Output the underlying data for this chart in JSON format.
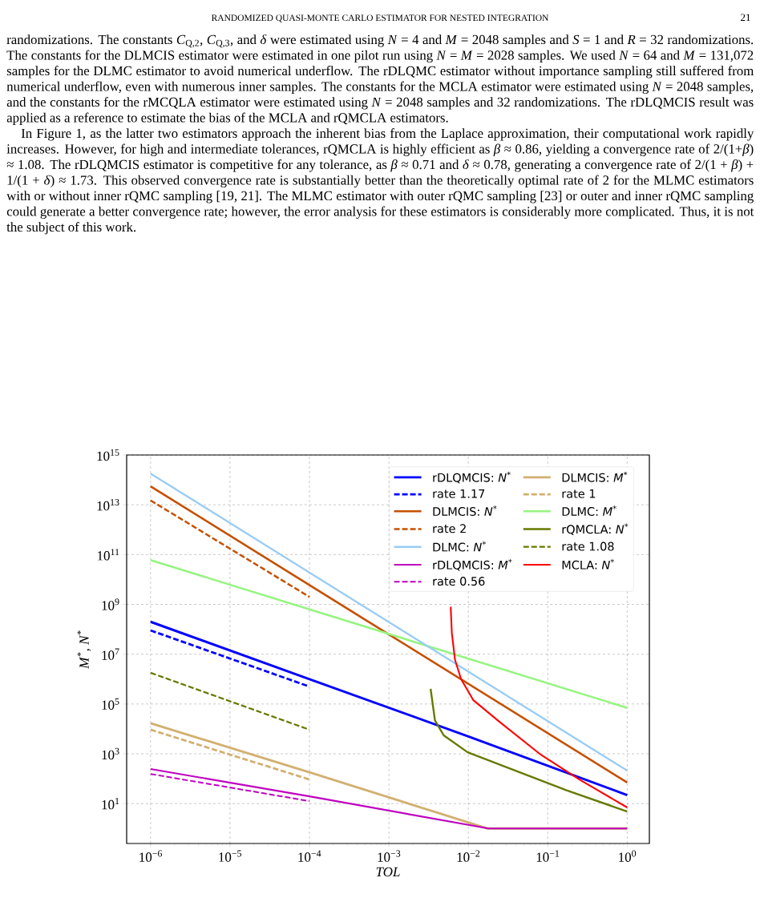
{
  "chart_data": {
    "type": "line",
    "xlabel": "*TOL*",
    "ylabel": "*M*$^{*}$, *N*$^{*}$",
    "annotations": [
      "RANDOMIZED QUASI-MONTE CARLO ESTIMATOR FOR NESTED INTEGRATION",
      "21",
      "randomizations. The constants *C*$_{Q,2}$, *C*$_{Q,3}$, and *δ* were estimated using *N* = 4 and *M* = 2048 samples and *S* = 1 and *R* = 32 randomizations. The constants for the DLMCIS estimator were estimated in one pilot run using *N* = *M* = 2028 samples. We used *N* = 64 and *M* = 131,072 samples for the DLMC estimator to avoid numerical underflow. The rDLQMC estimator without importance sampling still suffered from numerical underflow, even with numerous inner samples. The constants for the MCLA estimator were estimated using *N* = 2048 samples, and the constants for the rMCQLA estimator were estimated using *N* = 2048 samples and 32 randomizations. The rDLQMCIS result was applied as a reference to estimate the bias of the MCLA and rQMCLA estimators.",
      "In Figure 1, as the latter two estimators approach the inherent bias from the Laplace approximation, their computational work rapidly increases. However, for high and intermediate tolerances, rQMCLA is highly efficient as *β* ≈ 0.86, yielding a convergence rate of 2/(1+*β*) ≈ 1.08. The rDLQMCIS estimator is competitive for any tolerance, as *β* ≈ 0.71 and *δ* ≈ 0.78, generating a convergence rate of 2/(1 + *β*) + 1/(1 + *δ*) ≈ 1.73. This observed convergence rate is substantially better than the theoretically optimal rate of 2 for the MLMC estimators with or without inner rQMC sampling [19, 21]. The MLMC estimator with outer rQMC sampling [23] or outer and inner rQMC sampling could generate a better convergence rate; however, the error analysis for these estimators is considerably more complicated. Thus, it is not the subject of this work."
    ],
    "log": "xy",
    "xlim": [
      5e-07,
      1.9
    ],
    "ylim": [
      0.25,
      1000000000000000.0
    ],
    "xticks": [
      {
        "value": 1e-06,
        "label": "10$^{−6}$"
      },
      {
        "value": 1e-05,
        "label": "10$^{−5}$"
      },
      {
        "value": 0.0001,
        "label": "10$^{−4}$"
      },
      {
        "value": 0.001,
        "label": "10$^{−3}$"
      },
      {
        "value": 0.01,
        "label": "10$^{−2}$"
      },
      {
        "value": 0.1,
        "label": "10$^{−1}$"
      },
      {
        "value": 1,
        "label": "10$^{0}$"
      }
    ],
    "yticks": [
      {
        "value": 10,
        "label": "10$^{1}$"
      },
      {
        "value": 1000.0,
        "label": "10$^{3}$"
      },
      {
        "value": 100000.0,
        "label": "10$^{5}$"
      },
      {
        "value": 10000000.0,
        "label": "10$^{7}$"
      },
      {
        "value": 1000000000.0,
        "label": "10$^{9}$"
      },
      {
        "value": 100000000000.0,
        "label": "10$^{11}$"
      },
      {
        "value": 10000000000000.0,
        "label": "10$^{13}$"
      },
      {
        "value": 1000000000000000.0,
        "label": "10$^{15}$"
      }
    ],
    "grid": true,
    "legend": "top right",
    "series": [
      {
        "name": "rDLQMCIS: *N*$^{*}$",
        "color": "#0000ff",
        "line_style": "solid",
        "x": [
          1e-06,
          0.0001,
          0.01,
          1
        ],
        "values": [
          200000000.0,
          1000000.0,
          5000.0,
          22
        ]
      },
      {
        "name": "rate 1.17",
        "color": "#0000ff",
        "line_style": "dashed",
        "x": [
          1e-06,
          0.0001
        ],
        "values": [
          90000000.0,
          500000.0
        ]
      },
      {
        "name": "DLMCIS: *N*$^{*}$",
        "color": "#c55000",
        "line_style": "solid",
        "x": [
          1e-06,
          1
        ],
        "values": [
          55000000000000.0,
          70
        ]
      },
      {
        "name": "rate 2",
        "color": "#c55000",
        "line_style": "dashed",
        "x": [
          1e-06,
          0.0001
        ],
        "values": [
          15000000000000.0,
          2000000000.0
        ]
      },
      {
        "name": "DLMC: *N*$^{*}$",
        "color": "#99ccf5",
        "line_style": "solid",
        "x": [
          1e-06,
          1
        ],
        "values": [
          180000000000000.0,
          210
        ]
      },
      {
        "name": "rDLQMCIS: *M*$^{*}$",
        "color": "#bf00bf",
        "line_style": "solid",
        "x": [
          1e-06,
          0.0001,
          0.018,
          1
        ],
        "values": [
          245,
          19.5,
          1,
          1
        ]
      },
      {
        "name": "rate 0.56",
        "color": "#bf00bf",
        "line_style": "dashed",
        "x": [
          1e-06,
          0.0001
        ],
        "values": [
          155,
          12.6
        ]
      },
      {
        "name": "DLMCIS: *M*$^{*}$",
        "color": "#d2b070",
        "line_style": "solid",
        "x": [
          1e-06,
          0.0001,
          0.0175,
          1
        ],
        "values": [
          17000.0,
          180,
          1,
          1
        ]
      },
      {
        "name": "rate 1",
        "color": "#d2b070",
        "line_style": "dashed",
        "x": [
          1e-06,
          0.0001
        ],
        "values": [
          9300.0,
          93
        ]
      },
      {
        "name": "DLMC: *M*$^{*}$",
        "color": "#95f57f",
        "line_style": "solid",
        "x": [
          1e-06,
          1
        ],
        "values": [
          60000000000.0,
          70000.0
        ]
      },
      {
        "name": "rQMCLA: *N*$^{*}$",
        "color": "#667a00",
        "line_style": "solid",
        "x": [
          0.00335,
          0.0038,
          0.0049,
          0.0098,
          0.037,
          0.17,
          1
        ],
        "values": [
          410000.0,
          22000.0,
          5500.0,
          1150,
          224,
          35,
          4.8
        ]
      },
      {
        "name": "rate 1.08",
        "color": "#667a00",
        "line_style": "dashed",
        "x": [
          1e-06,
          0.0001
        ],
        "values": [
          1800000.0,
          9300.0
        ]
      },
      {
        "name": "MCLA: *N*$^{*}$",
        "color": "#ff0000",
        "line_style": "solid",
        "x": [
          0.006,
          0.0062,
          0.0068,
          0.0081,
          0.0115,
          0.0245,
          0.079,
          0.25,
          1
        ],
        "values": [
          800000000.0,
          70000000.0,
          5900000.0,
          1000000.0,
          145000.0,
          19500.0,
          1000.0,
          93,
          7
        ]
      }
    ]
  }
}
